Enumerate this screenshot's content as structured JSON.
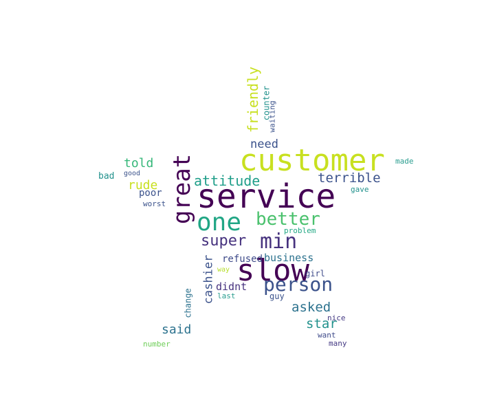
{
  "words": {
    "service": {
      "text": "service",
      "color": "#440154"
    },
    "customer": {
      "text": "customer",
      "color": "#c8e020"
    },
    "slow": {
      "text": "slow",
      "color": "#440154"
    },
    "great": {
      "text": "great",
      "color": "#440154"
    },
    "one": {
      "text": "one",
      "color": "#21a685"
    },
    "min": {
      "text": "min",
      "color": "#46327e"
    },
    "person": {
      "text": "person",
      "color": "#3b528b"
    },
    "better": {
      "text": "better",
      "color": "#4ac16d"
    },
    "super": {
      "text": "super",
      "color": "#46327e"
    },
    "friendly": {
      "text": "friendly",
      "color": "#c8e020"
    },
    "attitude": {
      "text": "attitude",
      "color": "#1f9e89"
    },
    "terrible": {
      "text": "terrible",
      "color": "#3b528b"
    },
    "asked": {
      "text": "asked",
      "color": "#2c728e"
    },
    "star": {
      "text": "star",
      "color": "#21918c"
    },
    "said": {
      "text": "said",
      "color": "#2c728e"
    },
    "told": {
      "text": "told",
      "color": "#35b779"
    },
    "rude": {
      "text": "rude",
      "color": "#c8e020"
    },
    "need": {
      "text": "need",
      "color": "#3b528b"
    },
    "cashier": {
      "text": "cashier",
      "color": "#3b528b"
    },
    "didnt": {
      "text": "didnt",
      "color": "#46327e"
    },
    "business": {
      "text": "business",
      "color": "#2c728e"
    },
    "refused": {
      "text": "refused",
      "color": "#3e4a89"
    },
    "poor": {
      "text": "poor",
      "color": "#3b528b"
    },
    "counter": {
      "text": "counter",
      "color": "#21918c"
    },
    "waiting": {
      "text": "waiting",
      "color": "#3b528b"
    },
    "change": {
      "text": "change",
      "color": "#2c728e"
    },
    "bad": {
      "text": "bad",
      "color": "#21918c"
    },
    "good": {
      "text": "good",
      "color": "#3b528b"
    },
    "worst": {
      "text": "worst",
      "color": "#3b528b"
    },
    "made": {
      "text": "made",
      "color": "#2a9d8f"
    },
    "gave": {
      "text": "gave",
      "color": "#21918c"
    },
    "problem": {
      "text": "problem",
      "color": "#22a884"
    },
    "way": {
      "text": "way",
      "color": "#b5de2b"
    },
    "girl": {
      "text": "girl",
      "color": "#3e4a89"
    },
    "last": {
      "text": "last",
      "color": "#2a9d8f"
    },
    "guy": {
      "text": "guy",
      "color": "#3b528b"
    },
    "nice": {
      "text": "nice",
      "color": "#443983"
    },
    "want": {
      "text": "want",
      "color": "#3e4a89"
    },
    "many": {
      "text": "many",
      "color": "#443983"
    },
    "number": {
      "text": "number",
      "color": "#6ece58"
    }
  }
}
